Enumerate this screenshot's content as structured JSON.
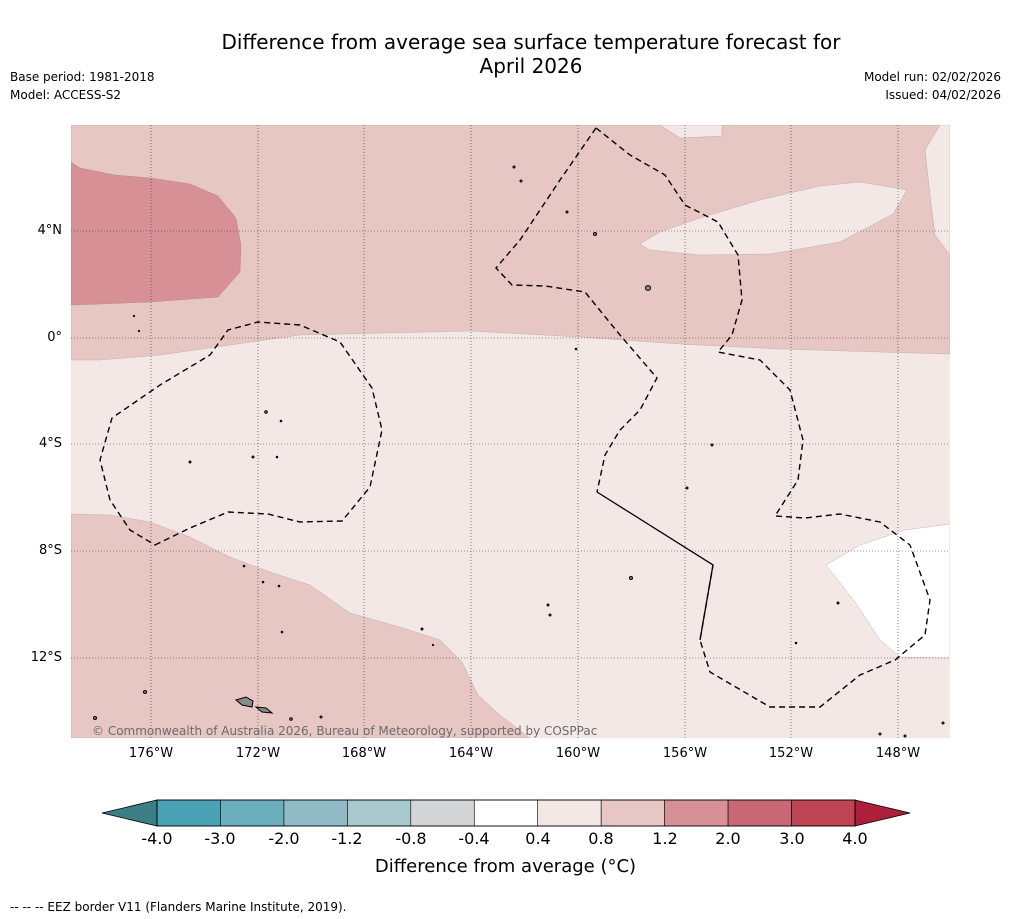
{
  "header": {
    "title_line1": "Difference from average sea surface temperature forecast for",
    "title_line2": "April 2026",
    "base_period": "Base period: 1981-2018",
    "model": "Model: ACCESS-S2",
    "model_run": "Model run: 02/02/2026",
    "issued": "Issued: 04/02/2026"
  },
  "map": {
    "lat_labels": [
      "4°N",
      "0°",
      "4°S",
      "8°S",
      "12°S"
    ],
    "lon_labels": [
      "176°W",
      "172°W",
      "168°W",
      "164°W",
      "160°W",
      "156°W",
      "152°W",
      "148°W"
    ],
    "copyright": "© Commonwealth of Australia 2026, Bureau of Meteorology, supported by COSPPac",
    "background_class": "0.4 to 0.8",
    "colors": {
      "c_04_08": "#f4e8e7",
      "c_08_12": "#e7c7c3",
      "c_12_20": "#d69096",
      "white": "#ffffff"
    }
  },
  "colorbar": {
    "ticks": [
      "-4.0",
      "-3.0",
      "-2.0",
      "-1.2",
      "-0.8",
      "-0.4",
      "0.4",
      "0.8",
      "1.2",
      "2.0",
      "3.0",
      "4.0"
    ],
    "colors": [
      "#4aa3b5",
      "#6bafbe",
      "#8fbac6",
      "#a9c8ce",
      "#d3d5d6",
      "#ffffff",
      "#f4e8e7",
      "#e7c7c3",
      "#d69096",
      "#c96874",
      "#be4553"
    ],
    "extend_low_color": "#3b7e87",
    "extend_high_color": "#ad1f3a",
    "label": "Difference from average (°C)"
  },
  "footnote": "--  --  -- EEZ border V11 (Flanders Marine Institute, 2019)."
}
